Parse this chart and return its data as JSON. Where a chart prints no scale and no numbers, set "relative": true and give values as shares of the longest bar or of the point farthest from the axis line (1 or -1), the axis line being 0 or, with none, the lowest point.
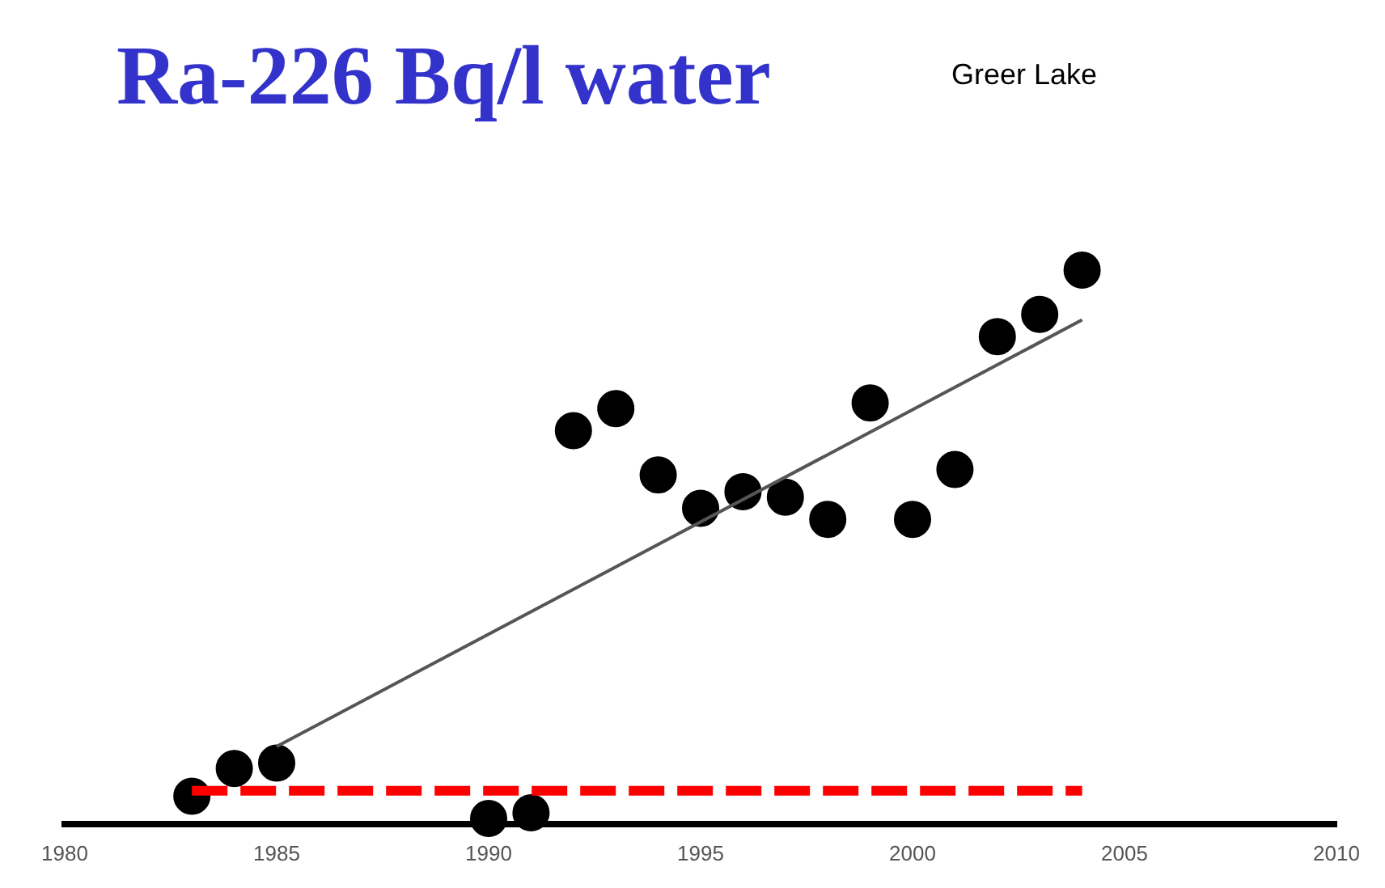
{
  "chart_data": {
    "type": "scatter",
    "title": "Ra-226 Bq/l water",
    "subtitle": "Greer Lake",
    "relative": true,
    "xlim": [
      1980,
      2010
    ],
    "xticks": [
      1980,
      1985,
      1990,
      1995,
      2000,
      2005,
      2010
    ],
    "legend": false,
    "grid": false,
    "marker": "circle",
    "series": [
      {
        "color": "#000000",
        "x": [
          1983,
          1984,
          1985,
          1990,
          1991,
          1992,
          1993,
          1994,
          1995,
          1996,
          1997,
          1998,
          1999,
          2000,
          2001,
          2002,
          2003,
          2004
        ],
        "values": [
          0.05,
          0.1,
          0.11,
          0.01,
          0.02,
          0.71,
          0.75,
          0.63,
          0.57,
          0.6,
          0.59,
          0.55,
          0.76,
          0.55,
          0.64,
          0.88,
          0.92,
          1
        ]
      },
      {
        "type": "line",
        "color": "#555555",
        "line_style": "solid",
        "marker": "none",
        "x": [
          1985,
          2004
        ],
        "values": [
          0.14,
          0.91
        ]
      },
      {
        "type": "line",
        "color": "#ff0000",
        "line_style": "dashed",
        "marker": "none",
        "x": [
          1983,
          2004
        ],
        "values": [
          0.06,
          0.06
        ]
      }
    ]
  }
}
